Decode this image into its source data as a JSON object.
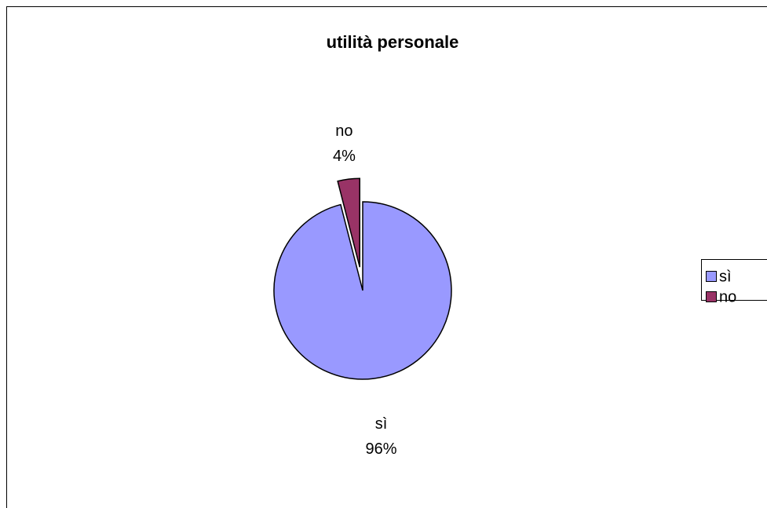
{
  "chart_data": {
    "type": "pie",
    "title": "utilità personale",
    "categories": [
      "sì",
      "no"
    ],
    "values": [
      96,
      4
    ],
    "value_labels": [
      "96%",
      "4%"
    ],
    "colors": [
      "#9999ff",
      "#993366"
    ],
    "legend": "right"
  }
}
